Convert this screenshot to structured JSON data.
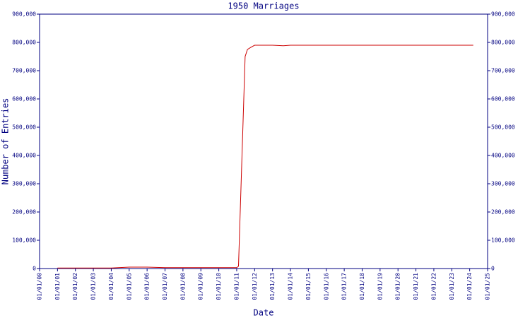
{
  "chart_data": {
    "type": "line",
    "title": "1950 Marriages",
    "xlabel": "Date",
    "ylabel": "Number of Entries",
    "x": [
      1,
      2,
      3,
      4,
      5,
      6,
      7,
      8,
      9,
      10,
      11,
      11.1,
      11.47,
      11.6,
      11.8,
      12,
      13,
      13.6,
      14,
      24.2
    ],
    "series": [
      {
        "name": "1950 Marriages",
        "color": "#cc0000",
        "values": [
          2000,
          2000,
          2000,
          2000,
          5000,
          5000,
          3000,
          3000,
          3000,
          3000,
          3000,
          8000,
          750000,
          775000,
          783000,
          790000,
          790000,
          788000,
          790000,
          790000
        ]
      }
    ],
    "xlim": [
      0,
      25
    ],
    "xticks": [
      {
        "value": 0,
        "label": "01/01/00"
      },
      {
        "value": 1,
        "label": "01/01/01"
      },
      {
        "value": 2,
        "label": "01/01/02"
      },
      {
        "value": 3,
        "label": "01/01/03"
      },
      {
        "value": 4,
        "label": "01/01/04"
      },
      {
        "value": 5,
        "label": "01/01/05"
      },
      {
        "value": 6,
        "label": "01/01/06"
      },
      {
        "value": 7,
        "label": "01/01/07"
      },
      {
        "value": 8,
        "label": "01/01/08"
      },
      {
        "value": 9,
        "label": "01/01/09"
      },
      {
        "value": 10,
        "label": "01/01/10"
      },
      {
        "value": 11,
        "label": "01/01/11"
      },
      {
        "value": 12,
        "label": "01/01/12"
      },
      {
        "value": 13,
        "label": "01/01/13"
      },
      {
        "value": 14,
        "label": "01/01/14"
      },
      {
        "value": 15,
        "label": "01/01/15"
      },
      {
        "value": 16,
        "label": "01/01/16"
      },
      {
        "value": 17,
        "label": "01/01/17"
      },
      {
        "value": 18,
        "label": "01/01/18"
      },
      {
        "value": 19,
        "label": "01/01/19"
      },
      {
        "value": 20,
        "label": "01/01/20"
      },
      {
        "value": 21,
        "label": "01/01/21"
      },
      {
        "value": 22,
        "label": "01/01/22"
      },
      {
        "value": 23,
        "label": "01/01/23"
      },
      {
        "value": 24,
        "label": "01/01/24"
      },
      {
        "value": 25,
        "label": "01/01/25"
      }
    ],
    "ylim": [
      0,
      900000
    ],
    "yticks": [
      0,
      {
        "value": 100000,
        "label": "100,000"
      },
      {
        "value": 200000,
        "label": "200,000"
      },
      {
        "value": 300000,
        "label": "300,000"
      },
      {
        "value": 400000,
        "label": "400,000"
      },
      {
        "value": 500000,
        "label": "500,000"
      },
      {
        "value": 600000,
        "label": "600,000"
      },
      {
        "value": 700000,
        "label": "700,000"
      },
      {
        "value": 800000,
        "label": "800,000"
      },
      {
        "value": 900000,
        "label": "900,000"
      }
    ],
    "y2lim": [
      0,
      900000
    ],
    "y2ticks": [
      0,
      {
        "value": 100000,
        "label": "100,000"
      },
      {
        "value": 200000,
        "label": "200,000"
      },
      {
        "value": 300000,
        "label": "300,000"
      },
      {
        "value": 400000,
        "label": "400,000"
      },
      {
        "value": 500000,
        "label": "500,000"
      },
      {
        "value": 600000,
        "label": "600,000"
      },
      {
        "value": 700000,
        "label": "700,000"
      },
      {
        "value": 800000,
        "label": "800,000"
      },
      {
        "value": 900000,
        "label": "900,000"
      }
    ],
    "axis_color": "#000080"
  }
}
